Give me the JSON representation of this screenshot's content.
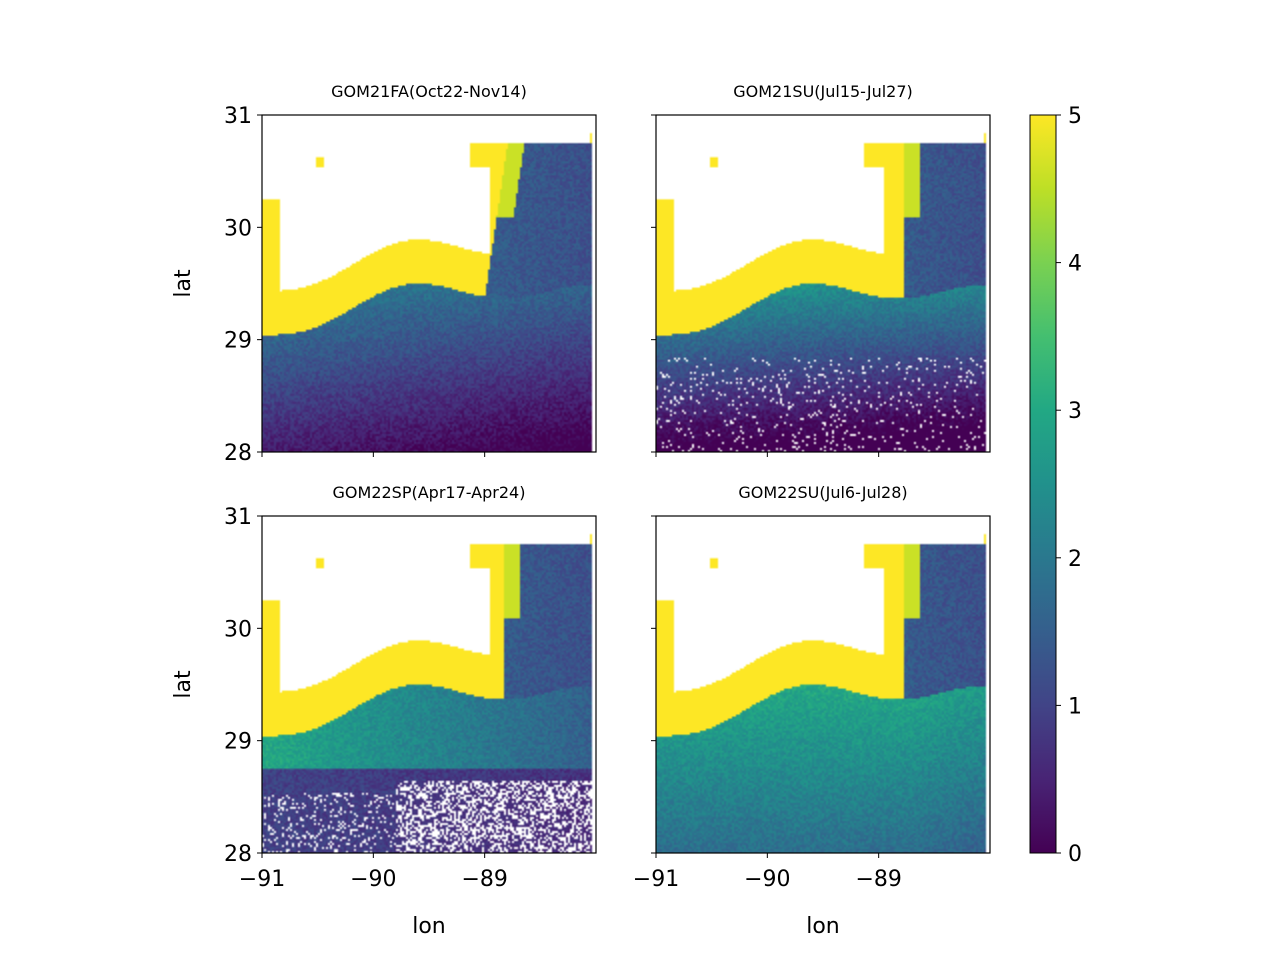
{
  "chart_data": {
    "type": "heatmap",
    "layout": "2x2 small multiples with shared colorbar",
    "colormap": "viridis",
    "colorbar": {
      "min": 0,
      "max": 5,
      "ticks": [
        "0",
        "1",
        "2",
        "3",
        "4",
        "5"
      ]
    },
    "xlim": [
      -91,
      -88.0
    ],
    "ylim": [
      28,
      31
    ],
    "x_ticks": [
      -91,
      -90,
      -89
    ],
    "x_tick_labels": [
      "−91",
      "−90",
      "−89"
    ],
    "y_ticks": [
      28,
      29,
      30,
      31
    ],
    "y_tick_labels": [
      "28",
      "29",
      "30",
      "31"
    ],
    "xlabel": "lon",
    "ylabel": "lat",
    "grid": false,
    "panels": [
      {
        "title": "GOM21FA(Oct22-Nov14)",
        "pattern": "fa21"
      },
      {
        "title": "GOM21SU(Jul15-Jul27)",
        "pattern": "su21"
      },
      {
        "title": "GOM22SP(Apr17-Apr24)",
        "pattern": "sp22"
      },
      {
        "title": "GOM22SU(Jul6-Jul28)",
        "pattern": "su22"
      }
    ]
  }
}
